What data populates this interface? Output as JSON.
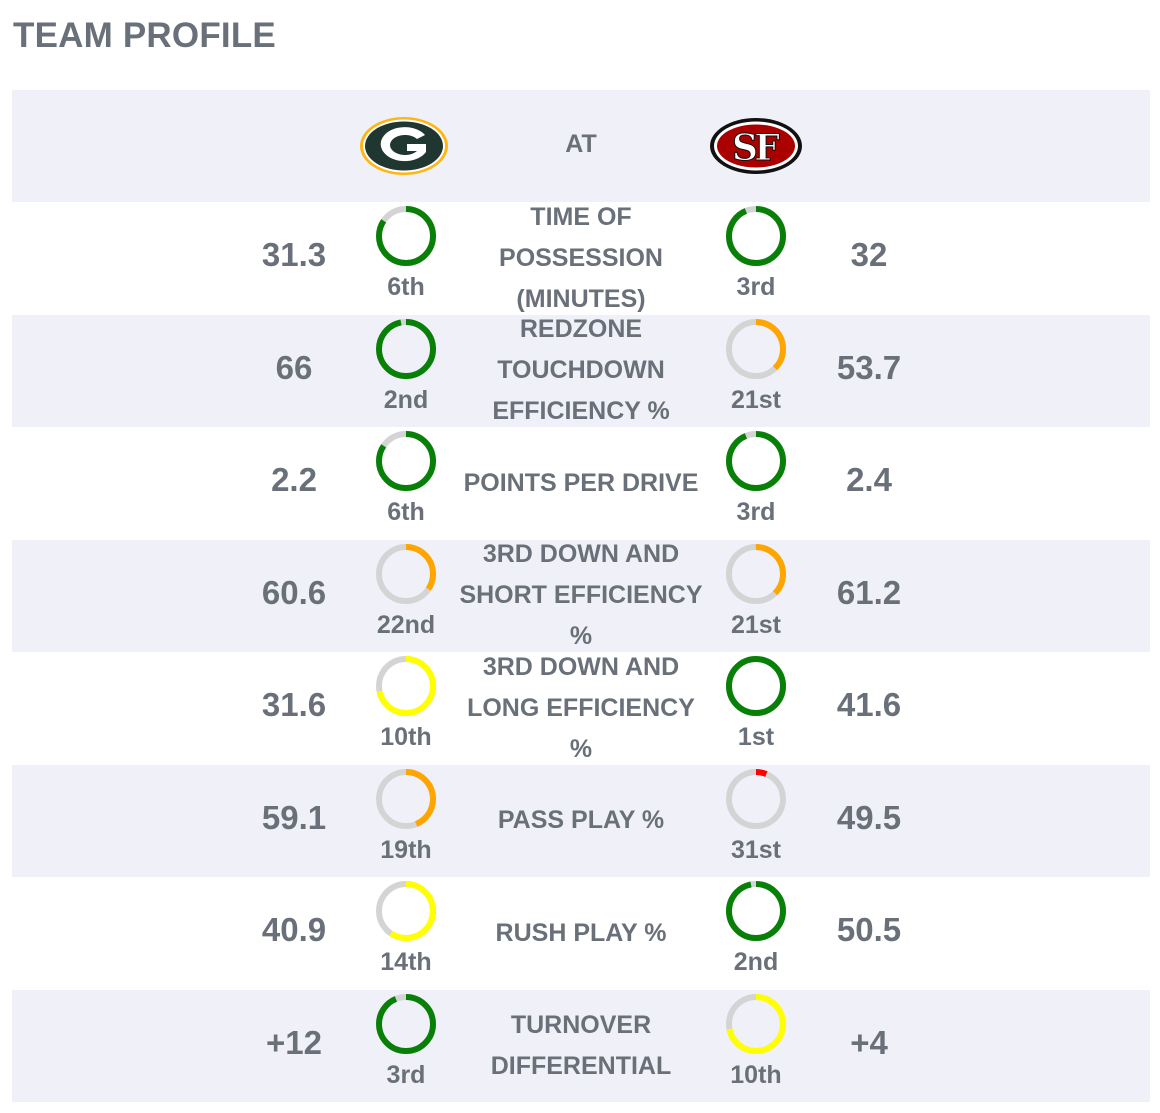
{
  "page_title": "TEAM PROFILE",
  "header": {
    "away_logo": "green-bay-packers-logo",
    "home_logo": "san-francisco-49ers-logo",
    "at_label": "AT"
  },
  "colors": {
    "ring_track": "#d4d4d4",
    "rank_green": "#088008",
    "rank_orange": "#ffa500",
    "rank_yellow": "#ffff00",
    "rank_red": "#ff0000",
    "row_shade": "#f0f1f8",
    "text": "#6a7079"
  },
  "total_teams": 32,
  "rows": [
    {
      "metric": "TIME OF POSSESSION (MINUTES)",
      "away_value": "31.3",
      "away_rank": 6,
      "away_suffix": "th",
      "home_value": "32",
      "home_rank": 3,
      "home_suffix": "rd"
    },
    {
      "metric": "REDZONE TOUCHDOWN EFFICIENCY %",
      "away_value": "66",
      "away_rank": 2,
      "away_suffix": "nd",
      "home_value": "53.7",
      "home_rank": 21,
      "home_suffix": "st"
    },
    {
      "metric": "POINTS PER DRIVE",
      "away_value": "2.2",
      "away_rank": 6,
      "away_suffix": "th",
      "home_value": "2.4",
      "home_rank": 3,
      "home_suffix": "rd"
    },
    {
      "metric": "3RD DOWN AND SHORT EFFICIENCY %",
      "away_value": "60.6",
      "away_rank": 22,
      "away_suffix": "nd",
      "home_value": "61.2",
      "home_rank": 21,
      "home_suffix": "st"
    },
    {
      "metric": "3RD DOWN AND LONG EFFICIENCY %",
      "away_value": "31.6",
      "away_rank": 10,
      "away_suffix": "th",
      "home_value": "41.6",
      "home_rank": 1,
      "home_suffix": "st"
    },
    {
      "metric": "PASS PLAY %",
      "away_value": "59.1",
      "away_rank": 19,
      "away_suffix": "th",
      "home_value": "49.5",
      "home_rank": 31,
      "home_suffix": "st"
    },
    {
      "metric": "RUSH PLAY %",
      "away_value": "40.9",
      "away_rank": 14,
      "away_suffix": "th",
      "home_value": "50.5",
      "home_rank": 2,
      "home_suffix": "nd"
    },
    {
      "metric": "TURNOVER DIFFERENTIAL",
      "away_value": "+12",
      "away_rank": 3,
      "away_suffix": "rd",
      "home_value": "+4",
      "home_rank": 10,
      "home_suffix": "th"
    }
  ]
}
